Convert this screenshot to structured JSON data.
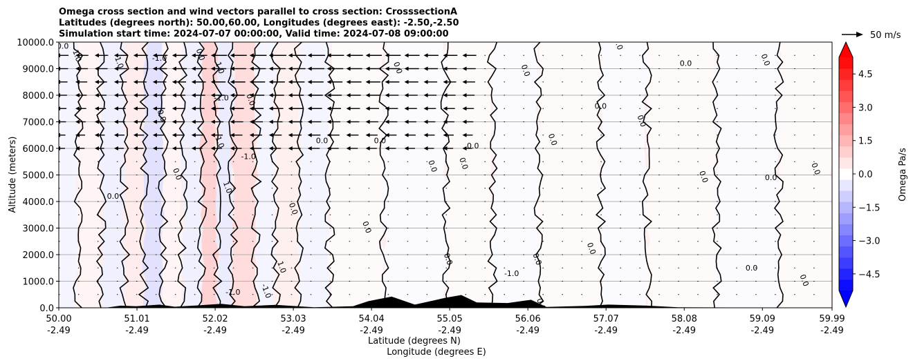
{
  "chart_data": {
    "type": "heatmap",
    "title_lines": [
      "Omega cross section and wind vectors parallel to cross section: CrosssectionA",
      "Latitudes (degrees north): 50.00,60.00, Longitudes (degrees east): -2.50,-2.50",
      "Simulation start time: 2024-07-07 00:00:00, Valid time: 2024-07-08 09:00:00"
    ],
    "xlabel_lines": [
      "Latitude (degrees N)",
      "Longitude (degrees E)"
    ],
    "ylabel": "Altitude (meters)",
    "colorbar_label": "Omega Pa/s",
    "colorbar_range": [
      -5.25,
      5.25
    ],
    "colorbar_ticks": [
      "4.5",
      "3.0",
      "1.5",
      "0.0",
      "−1.5",
      "−3.0",
      "−4.5"
    ],
    "colorbar_tick_values": [
      4.5,
      3.0,
      1.5,
      0.0,
      -1.5,
      -3.0,
      -4.5
    ],
    "colormap": "bwr",
    "colors": {
      "positive": "#ff0000",
      "negative": "#0000ff",
      "neutral": "#ffffff",
      "terrain": "#000000",
      "grid": "#b0b0b0"
    },
    "xlim": [
      50.0,
      59.99
    ],
    "ylim": [
      0,
      10000
    ],
    "x_tick_values": [
      50.0,
      51.01,
      52.02,
      53.03,
      54.04,
      55.05,
      56.06,
      57.07,
      58.08,
      59.09,
      59.99
    ],
    "x_tick_labels_lat": [
      "50.00",
      "51.01",
      "52.02",
      "53.03",
      "54.04",
      "55.05",
      "56.06",
      "57.07",
      "58.08",
      "59.09",
      "59.99"
    ],
    "x_tick_labels_lon": [
      "-2.49",
      "-2.49",
      "-2.49",
      "-2.49",
      "-2.49",
      "-2.49",
      "-2.49",
      "-2.49",
      "-2.49",
      "-2.49",
      "-2.49"
    ],
    "y_tick_values": [
      0,
      1000,
      2000,
      3000,
      4000,
      5000,
      6000,
      7000,
      8000,
      9000,
      10000
    ],
    "y_tick_labels": [
      "0.0",
      "1000.0",
      "2000.0",
      "3000.0",
      "4000.0",
      "5000.0",
      "6000.0",
      "7000.0",
      "8000.0",
      "9000.0",
      "10000.0"
    ],
    "grid": "horizontal",
    "quiver_key": {
      "label": "50 m/s",
      "speed": 50
    },
    "omega_bands": [
      {
        "lat0": 50.0,
        "lat1": 50.25,
        "omega": -0.2
      },
      {
        "lat0": 50.25,
        "lat1": 50.55,
        "omega": 0.2
      },
      {
        "lat0": 50.55,
        "lat1": 50.85,
        "omega": -0.3
      },
      {
        "lat0": 50.85,
        "lat1": 51.1,
        "omega": 0.4
      },
      {
        "lat0": 51.1,
        "lat1": 51.35,
        "omega": -0.6
      },
      {
        "lat0": 51.35,
        "lat1": 51.6,
        "omega": 0.2
      },
      {
        "lat0": 51.6,
        "lat1": 51.85,
        "omega": -0.3
      },
      {
        "lat0": 51.85,
        "lat1": 52.05,
        "omega": 0.9
      },
      {
        "lat0": 52.05,
        "lat1": 52.25,
        "omega": -0.4
      },
      {
        "lat0": 52.25,
        "lat1": 52.55,
        "omega": 0.7
      },
      {
        "lat0": 52.55,
        "lat1": 52.8,
        "omega": -0.2
      },
      {
        "lat0": 52.8,
        "lat1": 53.1,
        "omega": 0.3
      },
      {
        "lat0": 53.1,
        "lat1": 53.5,
        "omega": -0.2
      },
      {
        "lat0": 53.5,
        "lat1": 54.2,
        "omega": 0.1
      },
      {
        "lat0": 54.2,
        "lat1": 55.0,
        "omega": -0.1
      },
      {
        "lat0": 55.0,
        "lat1": 55.6,
        "omega": 0.1
      },
      {
        "lat0": 55.6,
        "lat1": 56.2,
        "omega": -0.1
      },
      {
        "lat0": 56.2,
        "lat1": 57.0,
        "omega": 0.1
      },
      {
        "lat0": 57.0,
        "lat1": 57.6,
        "omega": -0.1
      },
      {
        "lat0": 57.6,
        "lat1": 58.5,
        "omega": 0.1
      },
      {
        "lat0": 58.5,
        "lat1": 59.3,
        "omega": -0.1
      },
      {
        "lat0": 59.3,
        "lat1": 59.99,
        "omega": 0.1
      }
    ],
    "contour_labels": [
      {
        "text": "0.0",
        "lat": 50.05,
        "alt": 9750
      },
      {
        "text": "-1.0",
        "lat": 50.2,
        "alt": 9500
      },
      {
        "text": "1.0",
        "lat": 50.75,
        "alt": 9200
      },
      {
        "text": "-1.0",
        "lat": 51.3,
        "alt": 9300
      },
      {
        "text": "0.0",
        "lat": 51.8,
        "alt": 9500
      },
      {
        "text": "1.0",
        "lat": 52.05,
        "alt": 9000
      },
      {
        "text": "-1.0",
        "lat": 52.1,
        "alt": 7800
      },
      {
        "text": "0.0",
        "lat": 52.45,
        "alt": 7800
      },
      {
        "text": "1.0",
        "lat": 52.05,
        "alt": 6200
      },
      {
        "text": "-1.0",
        "lat": 52.45,
        "alt": 5600
      },
      {
        "text": "0.0",
        "lat": 51.3,
        "alt": 7200
      },
      {
        "text": "0.0",
        "lat": 51.5,
        "alt": 5000
      },
      {
        "text": "0.0",
        "lat": 50.7,
        "alt": 4100
      },
      {
        "text": "1.0",
        "lat": 52.15,
        "alt": 4500
      },
      {
        "text": "0.0",
        "lat": 53.0,
        "alt": 3700
      },
      {
        "text": "0.0",
        "lat": 53.4,
        "alt": 6200
      },
      {
        "text": "0.0",
        "lat": 53.95,
        "alt": 3000
      },
      {
        "text": "0.0",
        "lat": 54.35,
        "alt": 9000
      },
      {
        "text": "0.0",
        "lat": 54.15,
        "alt": 6200
      },
      {
        "text": "0.0",
        "lat": 54.8,
        "alt": 5300
      },
      {
        "text": "0.0",
        "lat": 55.2,
        "alt": 5400
      },
      {
        "text": "0.0",
        "lat": 55.35,
        "alt": 6000
      },
      {
        "text": "0.0",
        "lat": 56.0,
        "alt": 8900
      },
      {
        "text": "0.0",
        "lat": 56.35,
        "alt": 6300
      },
      {
        "text": "0.0",
        "lat": 57.0,
        "alt": 7500
      },
      {
        "text": "0.0",
        "lat": 57.2,
        "alt": 9900
      },
      {
        "text": "0.0",
        "lat": 57.5,
        "alt": 7000
      },
      {
        "text": "0.0",
        "lat": 58.1,
        "alt": 9100
      },
      {
        "text": "0.0",
        "lat": 58.3,
        "alt": 4900
      },
      {
        "text": "0.0",
        "lat": 59.1,
        "alt": 9300
      },
      {
        "text": "0.0",
        "lat": 59.2,
        "alt": 4800
      },
      {
        "text": "0.0",
        "lat": 59.75,
        "alt": 5200
      },
      {
        "text": "1.0",
        "lat": 52.85,
        "alt": 1500
      },
      {
        "text": "-1.0",
        "lat": 52.25,
        "alt": 500
      },
      {
        "text": "-1.0",
        "lat": 52.65,
        "alt": 600
      },
      {
        "text": "0.0",
        "lat": 55.0,
        "alt": 1800
      },
      {
        "text": "-1.0",
        "lat": 55.85,
        "alt": 1200
      },
      {
        "text": "0.0",
        "lat": 56.15,
        "alt": 1800
      },
      {
        "text": "0.0",
        "lat": 56.85,
        "alt": 2200
      },
      {
        "text": "0.0",
        "lat": 58.95,
        "alt": 1400
      },
      {
        "text": "0.0",
        "lat": 56.2,
        "alt": 100
      },
      {
        "text": "0.0",
        "lat": 59.6,
        "alt": 1000
      }
    ]
  }
}
